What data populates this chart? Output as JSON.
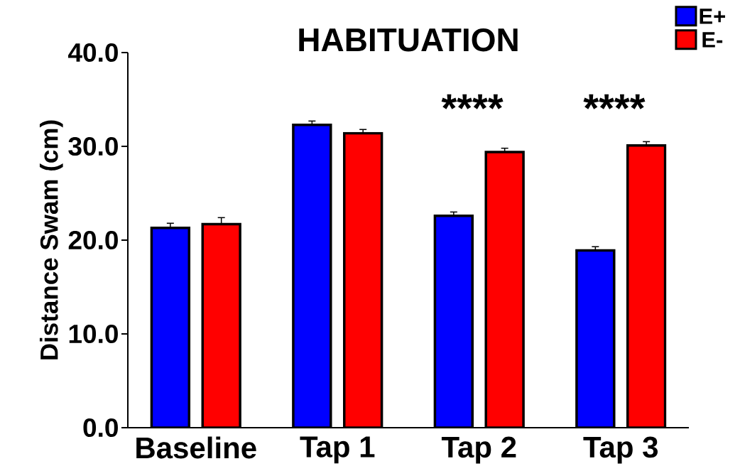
{
  "chart_data": {
    "type": "bar",
    "title": "HABITUATION",
    "ylabel": "Distance Swam (cm)",
    "categories": [
      "Baseline",
      "Tap 1",
      "Tap 2",
      "Tap 3"
    ],
    "series": [
      {
        "name": "E+",
        "color": "#0000ff",
        "values": [
          21.3,
          32.3,
          22.6,
          18.9
        ],
        "errors": [
          0.5,
          0.4,
          0.4,
          0.4
        ]
      },
      {
        "name": "E-",
        "color": "#ff0000",
        "values": [
          21.7,
          31.4,
          29.4,
          30.1
        ],
        "errors": [
          0.7,
          0.4,
          0.4,
          0.4
        ]
      }
    ],
    "ylim": [
      0,
      40
    ],
    "yticks": [
      {
        "value": 0,
        "label": "0.0"
      },
      {
        "value": 10,
        "label": "10.0"
      },
      {
        "value": 20,
        "label": "20.0"
      },
      {
        "value": 30,
        "label": "30.0"
      },
      {
        "value": 40,
        "label": "40.0"
      }
    ],
    "annotations": [
      "****",
      "****"
    ],
    "legend": "top right",
    "grid": false
  }
}
